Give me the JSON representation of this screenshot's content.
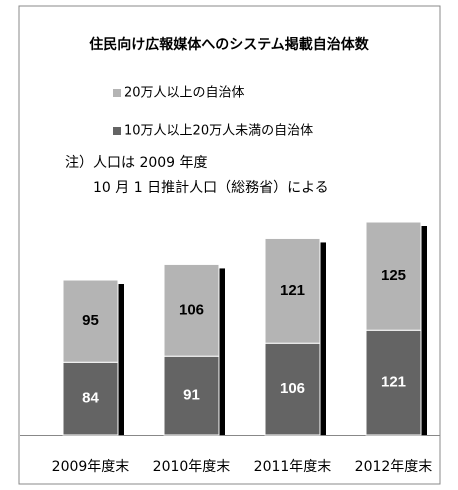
{
  "chart_data": {
    "type": "stacked_bar",
    "title": "住民向け広報媒体へのシステム掲載自治体数",
    "annotations": [
      "注）人口は 2009 年度",
      "10 月 1 日推計人口（総務省）による"
    ],
    "categories": [
      "2009年度末",
      "2010年度末",
      "2011年度末",
      "2012年度末"
    ],
    "series": [
      {
        "name": "10万人以上20万人未満の自治体",
        "color": "#646464",
        "values": [
          84,
          91,
          106,
          121
        ]
      },
      {
        "name": "20万人以上の自治体",
        "color": "#b4b4b4",
        "values": [
          95,
          106,
          121,
          125
        ]
      }
    ],
    "legend_order": [
      1,
      0
    ]
  }
}
